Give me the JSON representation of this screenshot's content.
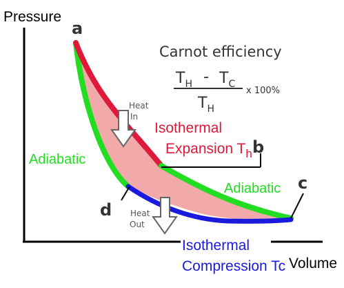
{
  "axes": {
    "y_label": "Pressure",
    "x_label": "Volume"
  },
  "points": {
    "a": "a",
    "b": "b",
    "c": "c",
    "d": "d"
  },
  "title": "Carnot efficiency",
  "formula": {
    "numerator_th": "T",
    "numerator_th_sub": "H",
    "minus": "-",
    "numerator_tc": "T",
    "numerator_tc_sub": "C",
    "denominator": "T",
    "denominator_sub": "H",
    "multiplier": "x 100%"
  },
  "labels": {
    "heat_in_line1": "Heat",
    "heat_in_line2": "In",
    "heat_out_line1": "Heat",
    "heat_out_line2": "Out",
    "isothermal_expansion_line1": "Isothermal",
    "isothermal_expansion_line2": "Expansion T",
    "isothermal_expansion_sub": "h",
    "adiabatic_left": "Adiabatic",
    "adiabatic_right": "Adiabatic",
    "isothermal_compression_line1": "Isothermal",
    "isothermal_compression_line2": "Compression Tc"
  },
  "colors": {
    "isothermal_expansion": "#dd1a3a",
    "adiabatic": "#22dd22",
    "isothermal_compression": "#1a1add",
    "cycle_fill": "#f2a9a9",
    "axis": "#000000"
  }
}
